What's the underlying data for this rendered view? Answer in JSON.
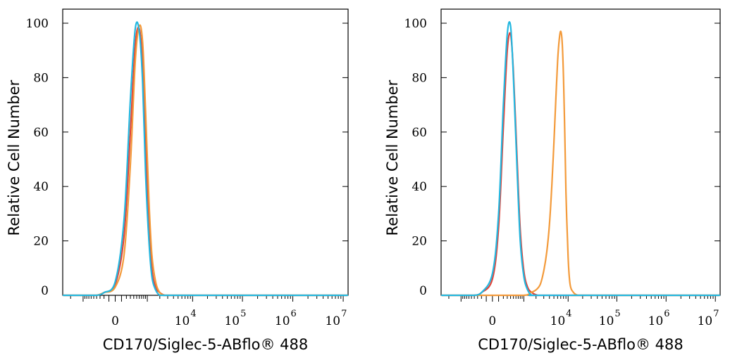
{
  "colors": {
    "red": "#e0443a",
    "orange": "#f39a3a",
    "cyan": "#22b7e0",
    "axis": "#000000"
  },
  "chart_data": [
    {
      "type": "line",
      "xlabel": "CD170/Siglec-5-ABflo® 488",
      "ylabel": "Relative Cell Number",
      "x_scale": "biexponential",
      "ylim": [
        0,
        100
      ],
      "yticks": [
        "0",
        "20",
        "40",
        "60",
        "80",
        "100"
      ],
      "xticks": [
        {
          "base": "0",
          "exp": ""
        },
        {
          "base": "10",
          "exp": "4"
        },
        {
          "base": "10",
          "exp": "5"
        },
        {
          "base": "10",
          "exp": "6"
        },
        {
          "base": "10",
          "exp": "7"
        }
      ],
      "grid": false,
      "series": [
        {
          "color": "red",
          "x": [
            -800,
            -400,
            -200,
            0,
            150,
            300,
            450,
            600,
            750,
            900,
            1100,
            1300,
            1600,
            2000,
            2600,
            3500,
            5000
          ],
          "y": [
            0,
            0,
            1,
            4,
            22,
            60,
            92,
            98,
            85,
            55,
            28,
            10,
            3,
            1,
            0,
            0,
            0
          ]
        },
        {
          "color": "orange",
          "x": [
            -800,
            -400,
            -200,
            0,
            150,
            300,
            450,
            600,
            750,
            900,
            1100,
            1300,
            1600,
            2000,
            2600,
            3500,
            5000
          ],
          "y": [
            0,
            0,
            1,
            3,
            15,
            48,
            86,
            99,
            93,
            68,
            35,
            15,
            5,
            1,
            0,
            0,
            0
          ]
        },
        {
          "color": "cyan",
          "x": [
            -800,
            -400,
            -200,
            0,
            150,
            300,
            450,
            600,
            750,
            900,
            1100,
            1300,
            1600,
            2000,
            2600,
            3500,
            5000
          ],
          "y": [
            0,
            0,
            1,
            5,
            28,
            72,
            98,
            97,
            78,
            45,
            20,
            7,
            2,
            0,
            0,
            0,
            0
          ]
        }
      ]
    },
    {
      "type": "line",
      "xlabel": "CD170/Siglec-5-ABflo® 488",
      "ylabel": "Relative Cell Number",
      "x_scale": "biexponential",
      "ylim": [
        0,
        100
      ],
      "yticks": [
        "0",
        "20",
        "40",
        "60",
        "80",
        "100"
      ],
      "xticks": [
        {
          "base": "0",
          "exp": ""
        },
        {
          "base": "10",
          "exp": "4"
        },
        {
          "base": "10",
          "exp": "5"
        },
        {
          "base": "10",
          "exp": "6"
        },
        {
          "base": "10",
          "exp": "7"
        }
      ],
      "grid": false,
      "series": [
        {
          "color": "red",
          "x": [
            -800,
            -400,
            -200,
            0,
            100,
            200,
            300,
            400,
            500,
            650,
            800,
            1000,
            1250,
            1600,
            2200,
            3000
          ],
          "y": [
            0,
            0,
            1,
            6,
            25,
            62,
            90,
            96,
            82,
            50,
            24,
            9,
            3,
            1,
            0,
            0
          ]
        },
        {
          "color": "orange",
          "x": [
            -800,
            0,
            1000,
            1500,
            2000,
            2500,
            3000,
            3500,
            4000,
            4500,
            5000,
            5500,
            6000,
            6500,
            7000,
            7500,
            8000,
            8500,
            9000,
            10000,
            11000,
            13000,
            16000,
            20000
          ],
          "y": [
            0,
            0,
            0,
            1,
            2,
            4,
            9,
            16,
            26,
            40,
            56,
            72,
            86,
            94,
            97,
            93,
            80,
            60,
            38,
            14,
            4,
            1,
            0,
            0
          ]
        },
        {
          "color": "cyan",
          "x": [
            -800,
            -400,
            -200,
            0,
            100,
            200,
            300,
            400,
            500,
            650,
            800,
            1000,
            1250,
            1600,
            2200,
            3000
          ],
          "y": [
            0,
            0,
            1,
            8,
            30,
            70,
            96,
            99,
            80,
            46,
            20,
            7,
            2,
            0,
            0,
            0
          ]
        }
      ]
    }
  ]
}
